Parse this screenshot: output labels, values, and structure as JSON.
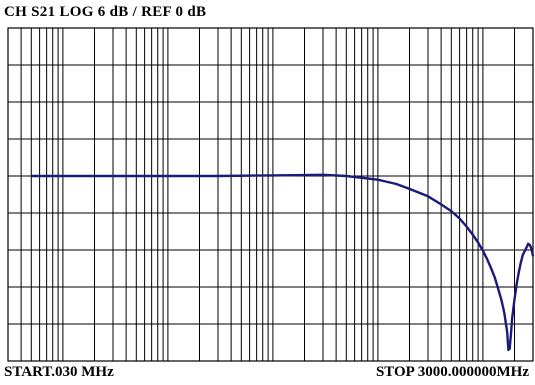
{
  "header": {
    "text": "CH S21 LOG 6 dB / REF 0 dB"
  },
  "footer": {
    "start": "START.030 MHz",
    "stop": "STOP 3000.000000MHz"
  },
  "colors": {
    "trace": "#1a1a7a",
    "grid": "#000000",
    "background": "#ffffff"
  },
  "chart_data": {
    "type": "line",
    "title": "CH S21 LOG 6 dB / REF 0 dB",
    "x_scale": "log",
    "xlim_mhz": [
      0.03,
      3000
    ],
    "ylim_db": [
      -30,
      24
    ],
    "reference_db": 0,
    "scale_db_per_div": 6,
    "grid": true,
    "series": [
      {
        "x_mhz": [
          0.05,
          0.1,
          0.3,
          1,
          3,
          10,
          30,
          50,
          100,
          150,
          200,
          300,
          400,
          500,
          600,
          700,
          800,
          900,
          1000,
          1100,
          1200,
          1300,
          1400,
          1500,
          1600,
          1700,
          1750,
          1800,
          1850,
          1900,
          2000,
          2100,
          2200,
          2300,
          2400,
          2500,
          2600,
          2700,
          2800,
          2900,
          3000
        ],
        "y_db": [
          0.0,
          0.0,
          0.0,
          0.0,
          0.0,
          0.1,
          0.2,
          0.0,
          -0.6,
          -1.3,
          -2.1,
          -3.3,
          -4.6,
          -5.7,
          -6.9,
          -8.2,
          -9.5,
          -10.8,
          -12.1,
          -13.5,
          -15.0,
          -16.5,
          -18.3,
          -20.1,
          -22.2,
          -25.2,
          -28.2,
          -28.0,
          -25.5,
          -23.0,
          -20.0,
          -17.5,
          -15.5,
          -14.0,
          -12.8,
          -12.2,
          -11.6,
          -11.0,
          -11.2,
          -11.8,
          -13.0
        ]
      }
    ]
  }
}
